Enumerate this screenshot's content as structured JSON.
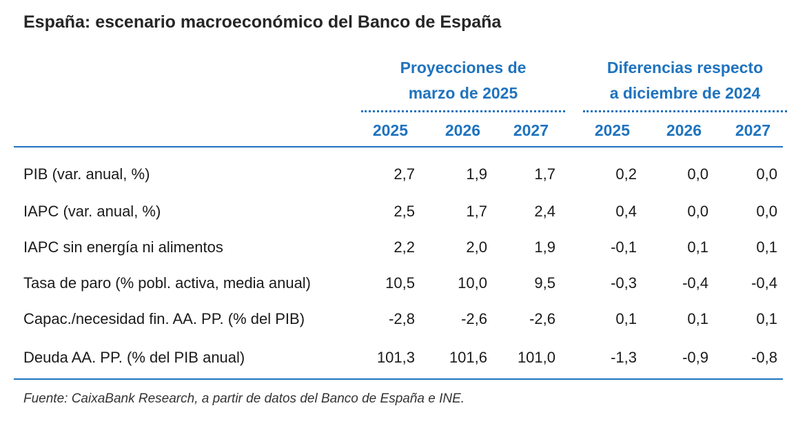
{
  "title": "España: escenario macroeconómico del Banco de España",
  "groups": [
    {
      "line1": "Proyecciones de",
      "line2": "marzo de 2025"
    },
    {
      "line1": "Diferencias respecto",
      "line2": "a diciembre de 2024"
    }
  ],
  "years": [
    "2025",
    "2026",
    "2027",
    "2025",
    "2026",
    "2027"
  ],
  "rows": [
    {
      "label": "PIB (var. anual, %)",
      "values": [
        "2,7",
        "1,9",
        "1,7",
        "0,2",
        "0,0",
        "0,0"
      ]
    },
    {
      "label": "IAPC (var. anual, %)",
      "values": [
        "2,5",
        "1,7",
        "2,4",
        "0,4",
        "0,0",
        "0,0"
      ]
    },
    {
      "label": "IAPC sin energía ni alimentos",
      "values": [
        "2,2",
        "2,0",
        "1,9",
        "-0,1",
        "0,1",
        "0,1"
      ]
    },
    {
      "label": "Tasa de paro (% pobl. activa, media anual)",
      "values": [
        "10,5",
        "10,0",
        "9,5",
        "-0,3",
        "-0,4",
        "-0,4"
      ]
    },
    {
      "label": "Capac./necesidad fin. AA. PP. (% del PIB)",
      "values": [
        "-2,8",
        "-2,6",
        "-2,6",
        "0,1",
        "0,1",
        "0,1"
      ]
    },
    {
      "label": "Deuda AA. PP. (% del PIB anual)",
      "values": [
        "101,3",
        "101,6",
        "101,0",
        "-1,3",
        "-0,9",
        "-0,8"
      ]
    }
  ],
  "source": "Fuente: CaixaBank Research, a partir de datos del Banco de España e INE.",
  "colors": {
    "accent": "#1f73be",
    "text": "#1a1a1a"
  }
}
